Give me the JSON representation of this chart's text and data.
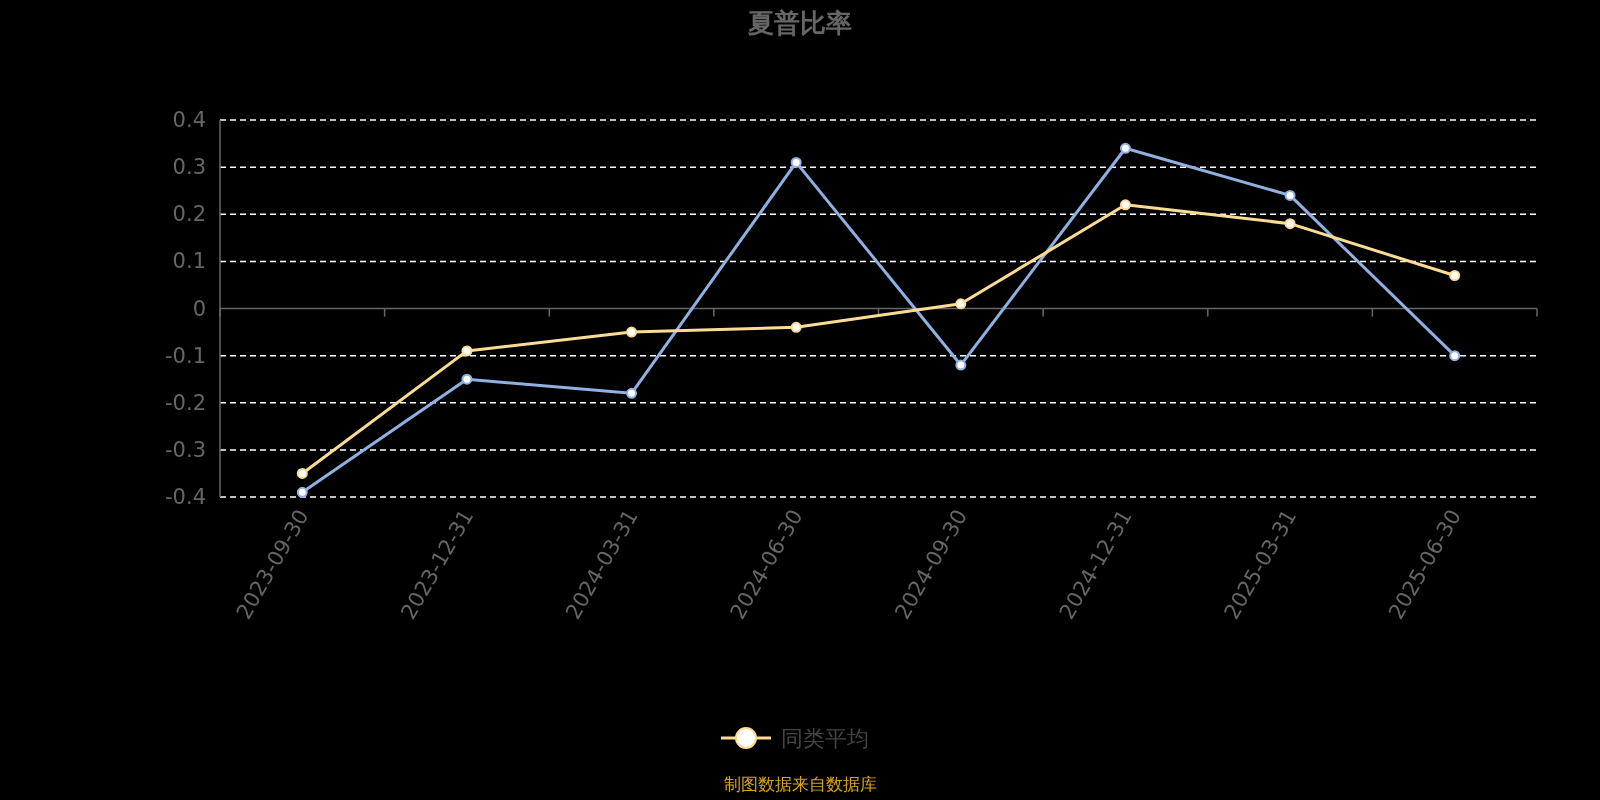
{
  "chart_data": {
    "type": "line",
    "title": "夏普比率",
    "categories": [
      "2023-09-30",
      "2023-12-31",
      "2024-03-31",
      "2024-06-30",
      "2024-09-30",
      "2024-12-31",
      "2025-03-31",
      "2025-06-30"
    ],
    "series": [
      {
        "color": "#8fb0e0",
        "values": [
          -0.39,
          -0.15,
          -0.18,
          0.31,
          -0.12,
          0.34,
          0.24,
          -0.1
        ]
      },
      {
        "name": "同类平均",
        "color": "#fcdc94",
        "values": [
          -0.35,
          -0.09,
          -0.05,
          -0.04,
          0.01,
          0.22,
          0.18,
          0.07
        ]
      }
    ],
    "ylim": [
      -0.4,
      0.4
    ],
    "yticks": [
      -0.4,
      -0.3,
      -0.2,
      -0.1,
      0,
      0.1,
      0.2,
      0.3,
      0.4
    ],
    "grid": "y",
    "marker": "circle",
    "line_style": "solid",
    "legend": "bottom",
    "annotations": [
      "制图数据来自数据库"
    ]
  }
}
